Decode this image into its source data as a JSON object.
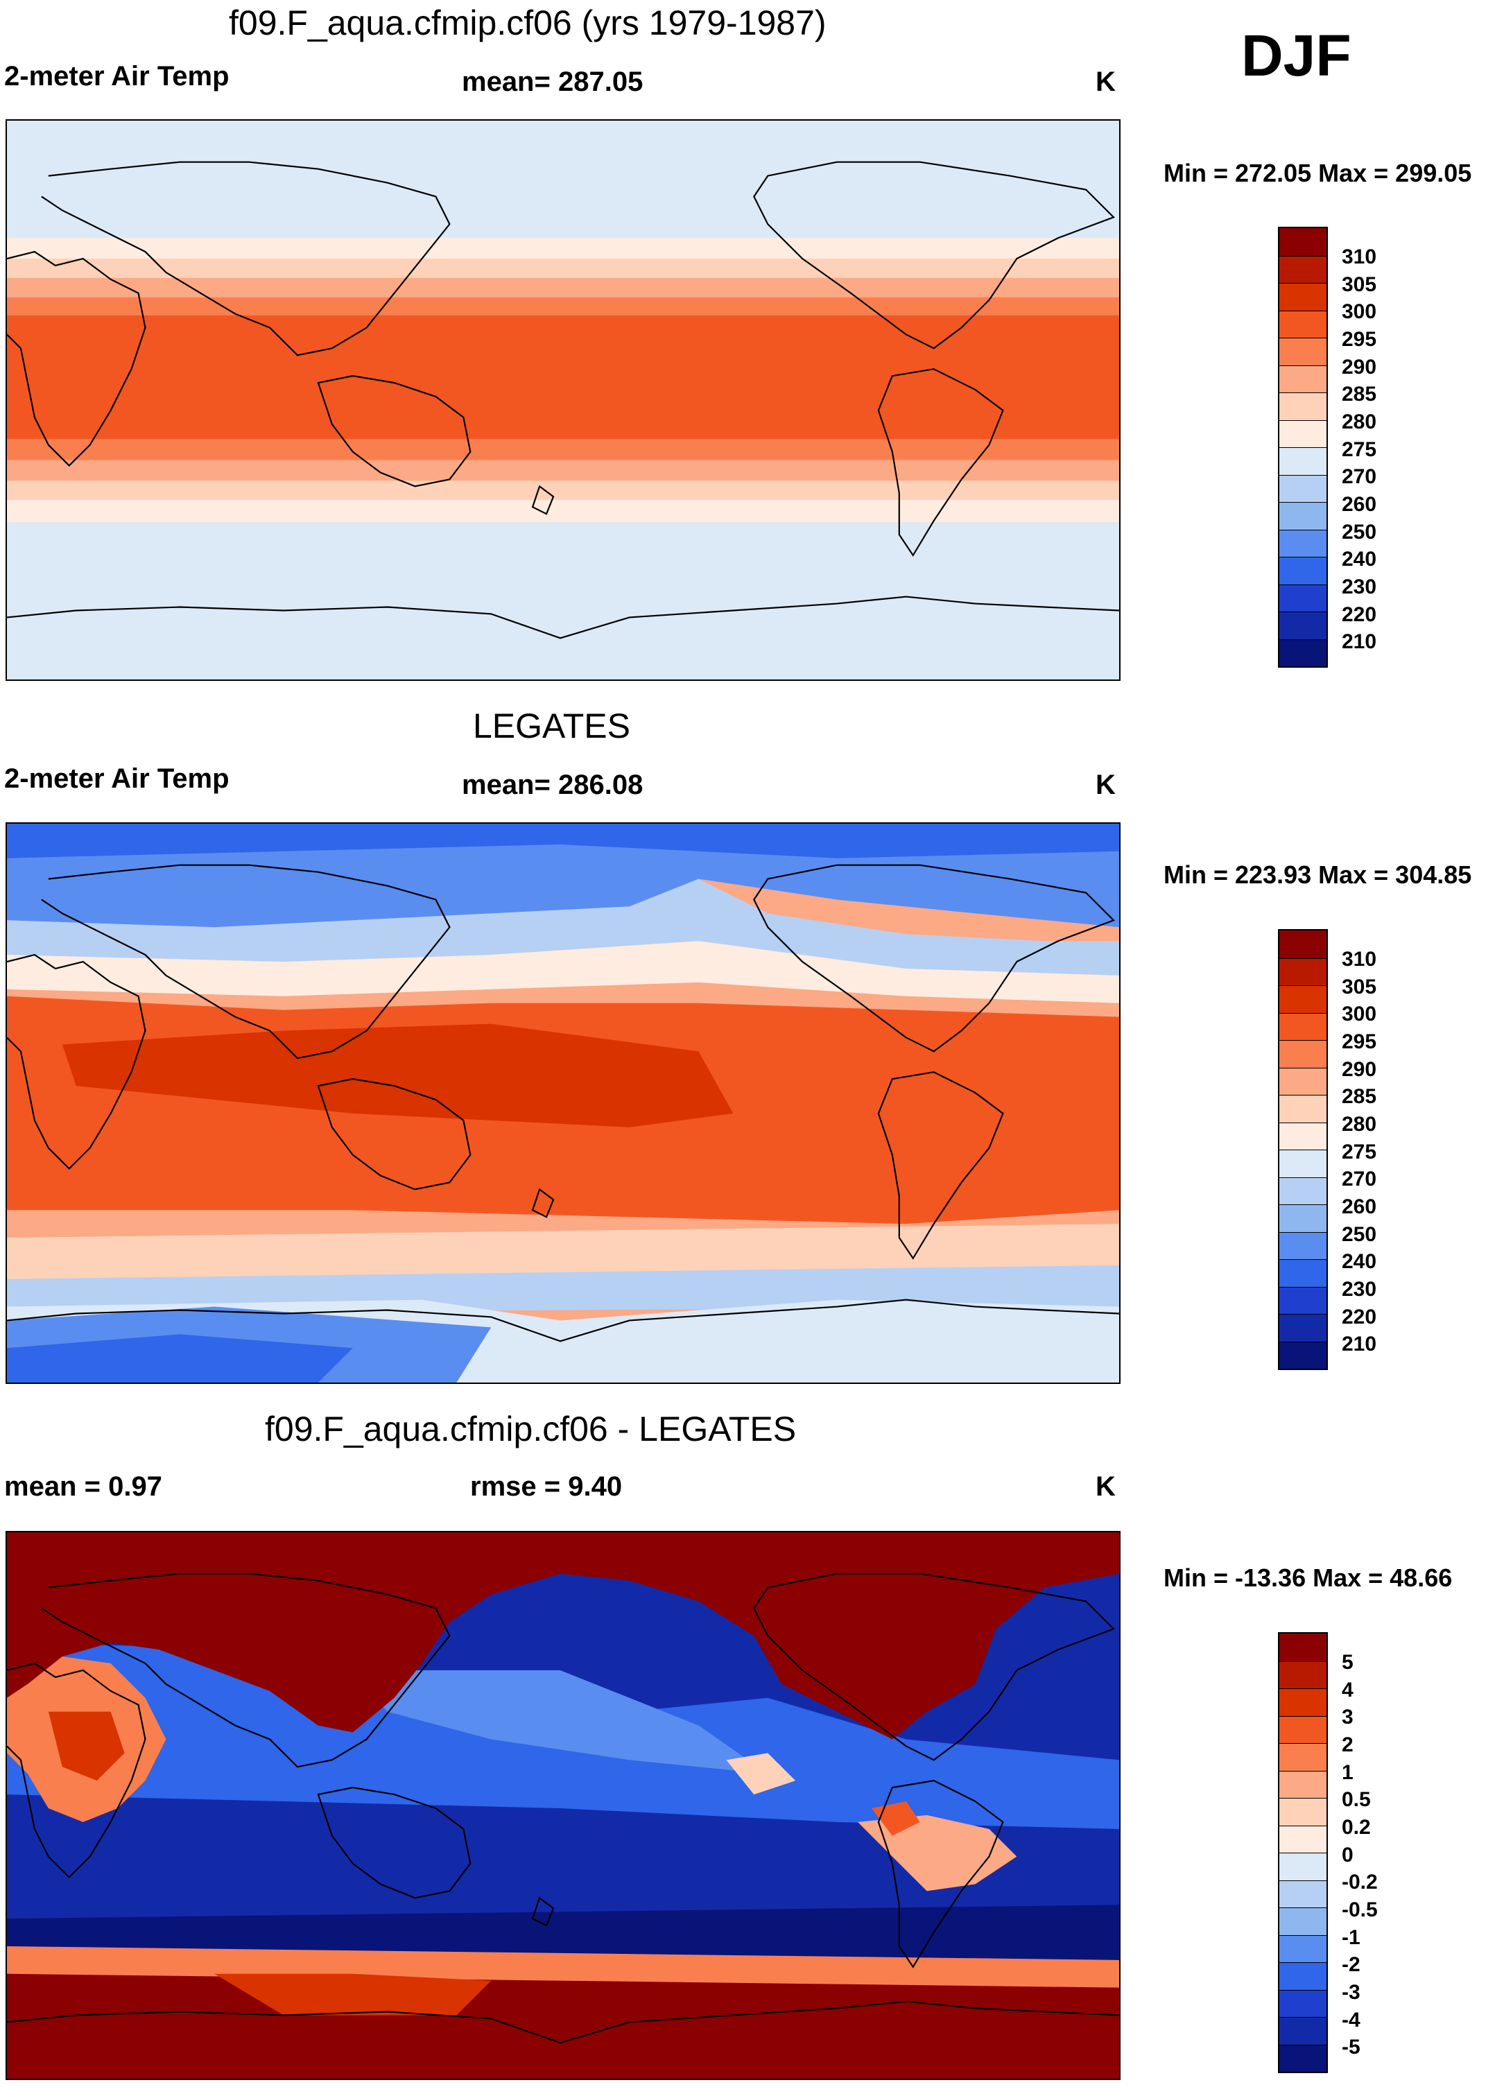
{
  "season": "DJF",
  "panels": [
    {
      "title": "f09.F_aqua.cfmip.cf06 (yrs 1979-1987)",
      "left_label": "2-meter Air Temp",
      "center_label": "mean= 287.05",
      "unit": "K",
      "minmax": "Min = 272.05 Max = 299.05",
      "colorbar_labels": [
        "310",
        "305",
        "300",
        "295",
        "290",
        "285",
        "280",
        "275",
        "270",
        "260",
        "250",
        "240",
        "230",
        "220",
        "210"
      ],
      "colors": [
        "#8b0000",
        "#b81a00",
        "#d93300",
        "#f25722",
        "#fa7f4f",
        "#fca985",
        "#fdd2b9",
        "#fdecdf",
        "#dce9f7",
        "#b5d0f3",
        "#8fb7ef",
        "#5a8df0",
        "#2f66ea",
        "#1f3fcf",
        "#132aa8",
        "#081478"
      ]
    },
    {
      "title": "LEGATES",
      "left_label": "2-meter Air Temp",
      "center_label": "mean= 286.08",
      "unit": "K",
      "minmax": "Min = 223.93 Max = 304.85",
      "colorbar_labels": [
        "310",
        "305",
        "300",
        "295",
        "290",
        "285",
        "280",
        "275",
        "270",
        "260",
        "250",
        "240",
        "230",
        "220",
        "210"
      ],
      "colors": [
        "#8b0000",
        "#b81a00",
        "#d93300",
        "#f25722",
        "#fa7f4f",
        "#fca985",
        "#fdd2b9",
        "#fdecdf",
        "#dce9f7",
        "#b5d0f3",
        "#8fb7ef",
        "#5a8df0",
        "#2f66ea",
        "#1f3fcf",
        "#132aa8",
        "#081478"
      ]
    },
    {
      "title": "f09.F_aqua.cfmip.cf06 - LEGATES",
      "left_label": "mean =   0.97",
      "center_label": "rmse =   9.40",
      "unit": "K",
      "minmax": "Min = -13.36 Max =  48.66",
      "colorbar_labels": [
        "5",
        "4",
        "3",
        "2",
        "1",
        "0.5",
        "0.2",
        "0",
        "-0.2",
        "-0.5",
        "-1",
        "-2",
        "-3",
        "-4",
        "-5"
      ],
      "colors": [
        "#8b0000",
        "#b81a00",
        "#d93300",
        "#f25722",
        "#fa7f4f",
        "#fca985",
        "#fdd2b9",
        "#fdecdf",
        "#dce9f7",
        "#b5d0f3",
        "#8fb7ef",
        "#5a8df0",
        "#2f66ea",
        "#1f3fcf",
        "#132aa8",
        "#081478"
      ]
    }
  ]
}
